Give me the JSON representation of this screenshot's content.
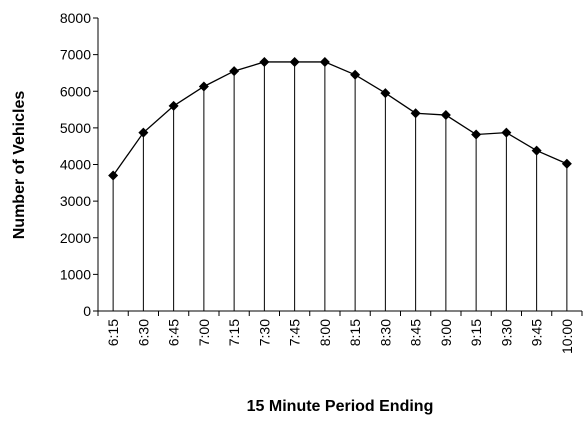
{
  "chart_data": {
    "type": "line",
    "xlabel": "15 Minute Period Ending",
    "ylabel": "Number of Vehicles",
    "categories": [
      "6:15",
      "6:30",
      "6:45",
      "7:00",
      "7:15",
      "7:30",
      "7:45",
      "8:00",
      "8:15",
      "8:30",
      "8:45",
      "9:00",
      "9:15",
      "9:30",
      "9:45",
      "10:00"
    ],
    "series": [
      {
        "name": "Vehicles",
        "color": "#000000",
        "values": [
          3700,
          4870,
          5600,
          6130,
          6550,
          6800,
          6800,
          6800,
          6450,
          5950,
          5400,
          5350,
          4820,
          4870,
          4380,
          4020
        ]
      }
    ],
    "ylim": [
      0,
      8000
    ],
    "yticks": [
      0,
      1000,
      2000,
      3000,
      4000,
      5000,
      6000,
      7000,
      8000
    ],
    "drop_lines": true
  }
}
